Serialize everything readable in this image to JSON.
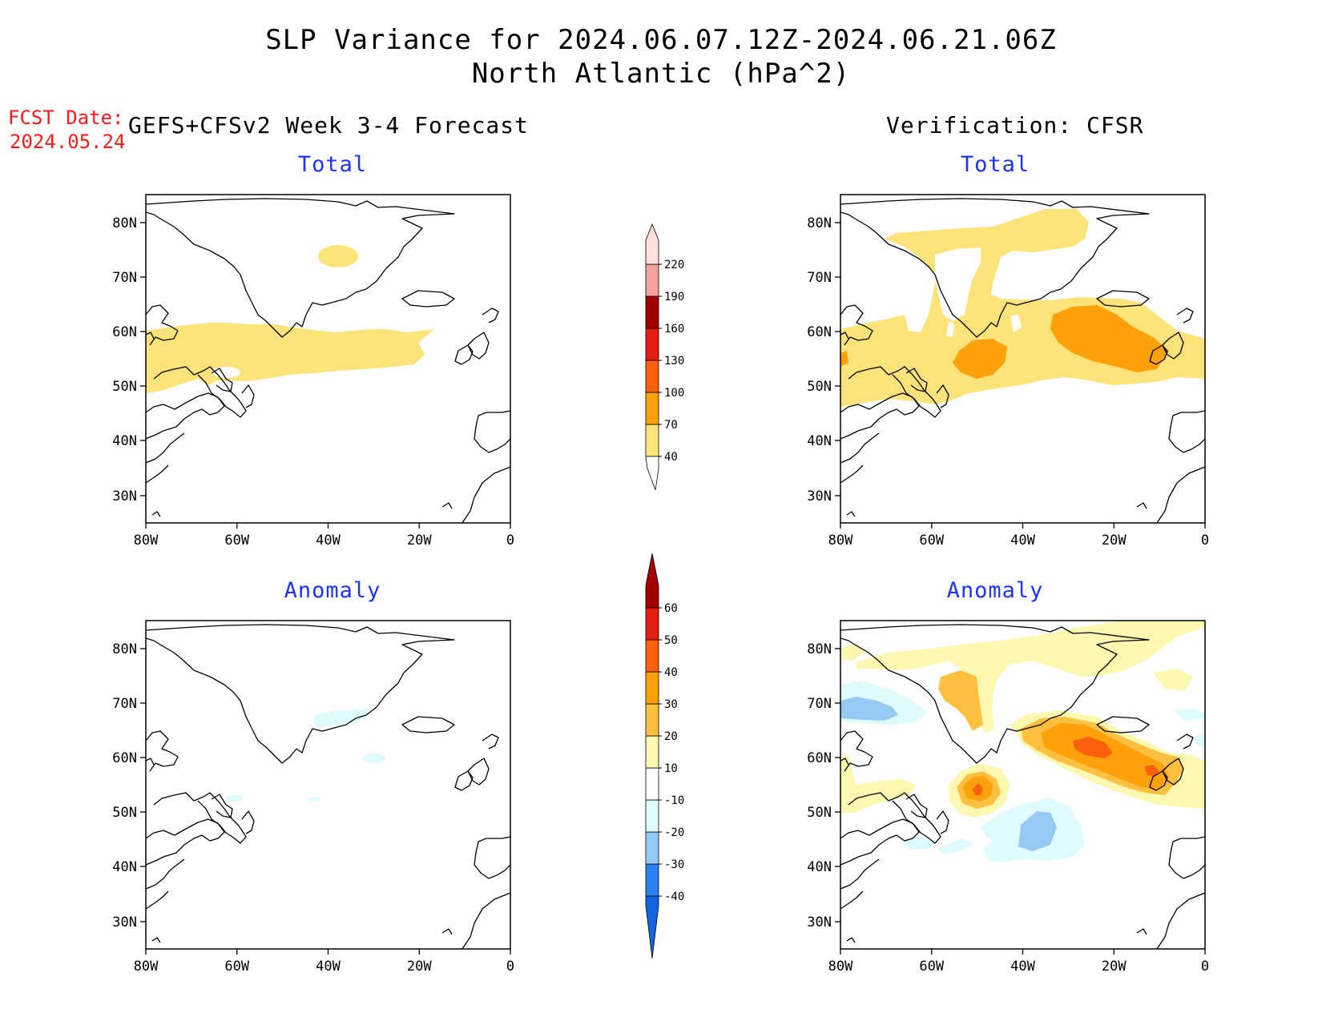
{
  "title": {
    "line1": "SLP Variance for 2024.06.07.12Z-2024.06.21.06Z",
    "line2": "North Atlantic (hPa^2)"
  },
  "fcst": {
    "label": "FCST Date:",
    "date": "2024.05.24"
  },
  "left_header": "GEFS+CFSv2 Week 3-4 Forecast",
  "right_header": "Verification: CFSR",
  "panel_titles": {
    "top": "Total",
    "bottom": "Anomaly"
  },
  "axes": {
    "lat_ticks": [
      "80N",
      "70N",
      "60N",
      "50N",
      "40N",
      "30N"
    ],
    "lon_ticks": [
      "80W",
      "60W",
      "40W",
      "20W",
      "0"
    ]
  },
  "colorbar_total": {
    "levels": [
      "40",
      "70",
      "100",
      "130",
      "160",
      "190",
      "220"
    ],
    "colors": [
      "#fde37a",
      "#ffa10a",
      "#ff6010",
      "#e51e12",
      "#a30000",
      "#f2a0a0",
      "#fde0dc"
    ]
  },
  "colorbar_anomaly": {
    "levels": [
      "-40",
      "-30",
      "-20",
      "-10",
      "10",
      "20",
      "30",
      "40",
      "50",
      "60"
    ],
    "colors": [
      "#1464e0",
      "#2a82f0",
      "#96caf5",
      "#e0fbff",
      "#ffffff",
      "#fff8b0",
      "#ffc040",
      "#ffa10a",
      "#ff6010",
      "#e51e12",
      "#a30000"
    ]
  },
  "shading": {
    "total_40_70": "#fde37a",
    "total_70_100": "#ffa10a",
    "anom_10_20": "#fff8b0",
    "anom_20_30": "#ffc040",
    "anom_30_40": "#ffa10a",
    "anom_40_50": "#ff6010",
    "anom_m20_m10": "#e0fbff",
    "anom_m30_m20": "#96caf5"
  }
}
